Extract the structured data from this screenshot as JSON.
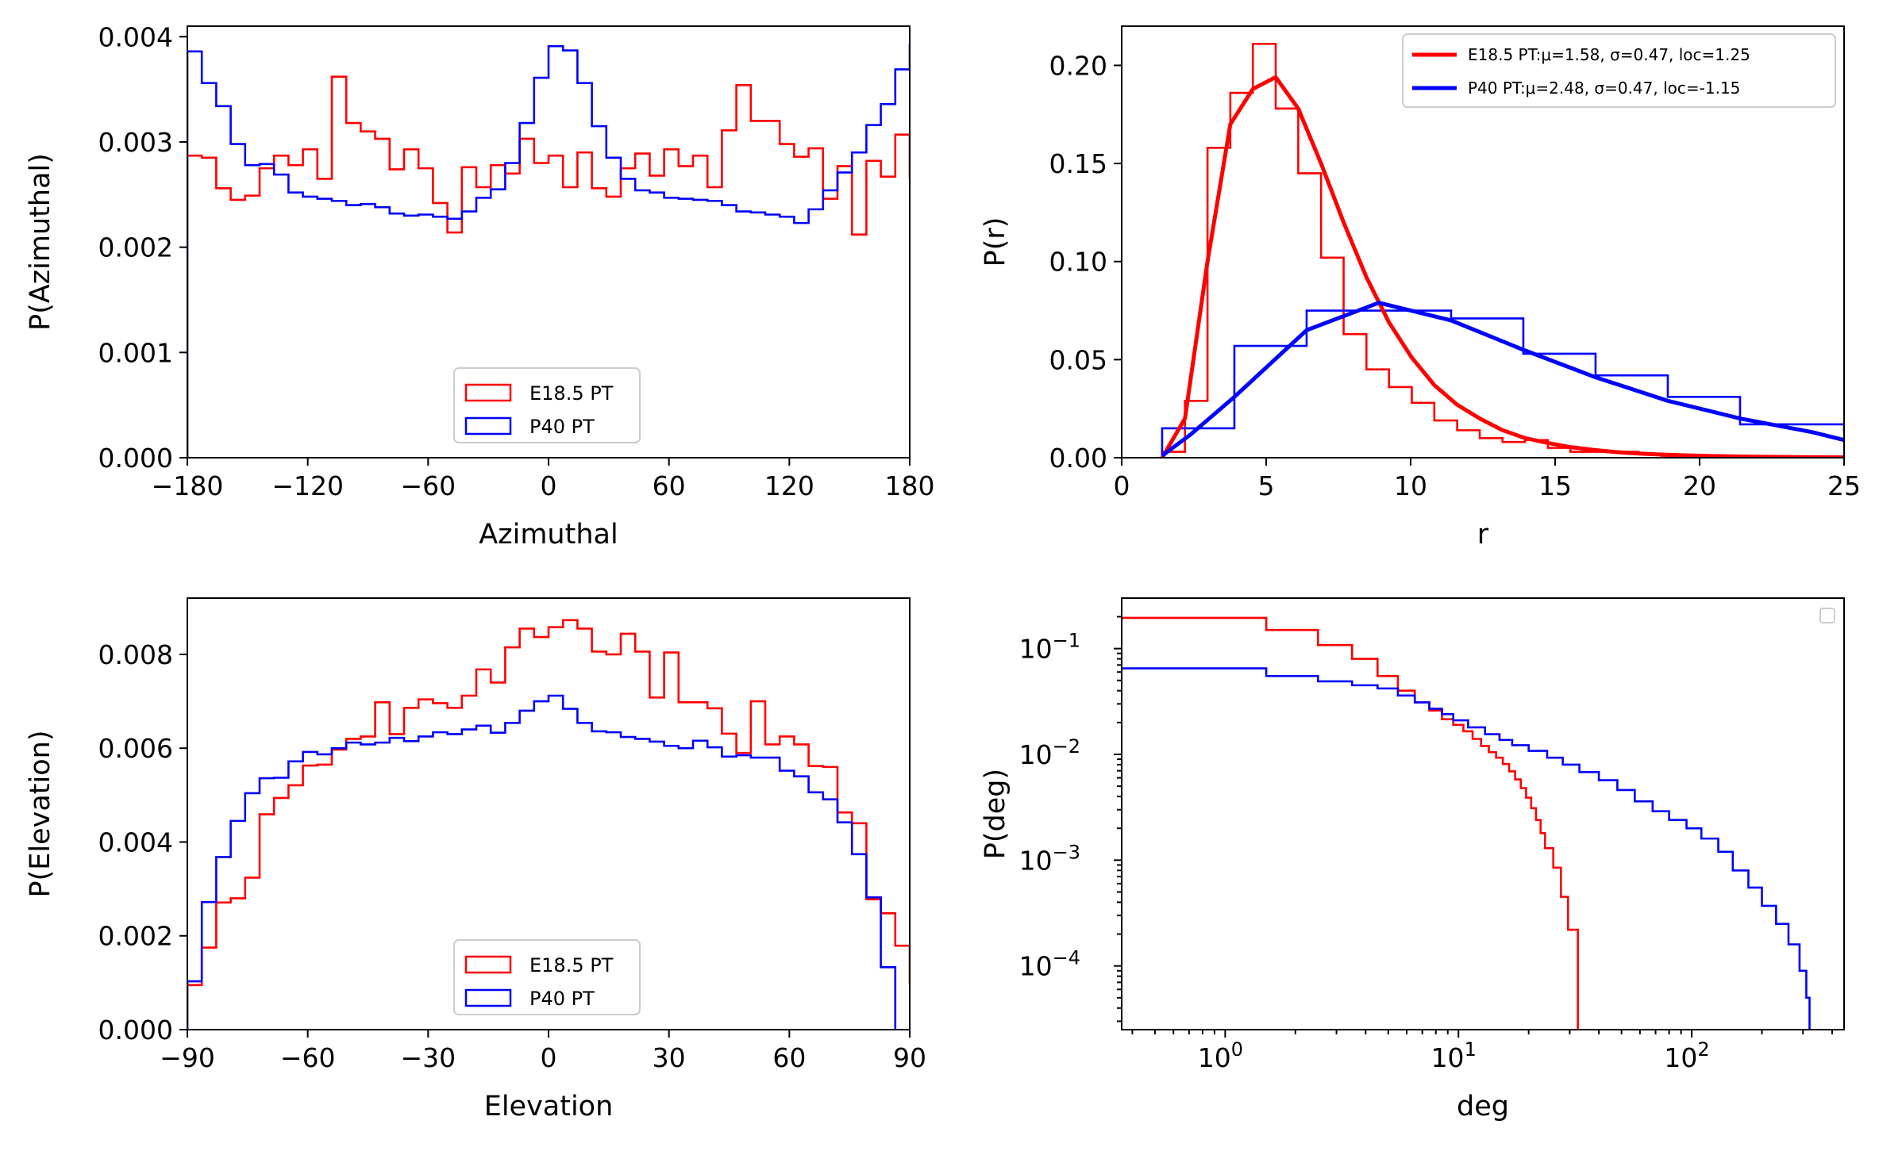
{
  "figure": {
    "colors": {
      "e185": "#ff0000",
      "p40": "#0000ff",
      "axis": "#000000"
    }
  },
  "chart_data": [
    {
      "id": "azimuthal",
      "type": "step",
      "xlabel": "Azimuthal",
      "ylabel": "P(Azimuthal)",
      "xlim": [
        -180,
        180
      ],
      "ylim": [
        0,
        0.0041
      ],
      "xticks": [
        -180,
        -120,
        -60,
        0,
        60,
        120,
        180
      ],
      "xtick_labels": [
        "−180",
        "−120",
        "−60",
        "0",
        "60",
        "120",
        "180"
      ],
      "yticks": [
        0,
        0.001,
        0.002,
        0.003,
        0.004
      ],
      "ytick_labels": [
        "0.000",
        "0.001",
        "0.002",
        "0.003",
        "0.004"
      ],
      "legend_position": "bottom-center",
      "legend": [
        "E18.5 PT",
        "P40 PT"
      ],
      "bin_edges_step": 7.2,
      "series": [
        {
          "name": "E18.5 PT",
          "color": "#ff0000",
          "values": [
            0.00287,
            0.00285,
            0.00256,
            0.00245,
            0.00249,
            0.00275,
            0.00287,
            0.00278,
            0.00293,
            0.00265,
            0.00362,
            0.00318,
            0.0031,
            0.00303,
            0.00274,
            0.00293,
            0.00275,
            0.00242,
            0.00214,
            0.00276,
            0.00257,
            0.00278,
            0.0027,
            0.00303,
            0.0028,
            0.00287,
            0.00257,
            0.0029,
            0.00256,
            0.00248,
            0.00275,
            0.00289,
            0.00268,
            0.00293,
            0.00277,
            0.00287,
            0.00257,
            0.00311,
            0.00354,
            0.0032,
            0.0032,
            0.00298,
            0.00286,
            0.00294,
            0.00246,
            0.00277,
            0.00212,
            0.00282,
            0.00267,
            0.00307,
            0.00267
          ]
        },
        {
          "name": "P40 PT",
          "color": "#0000ff",
          "values": [
            0.00386,
            0.00356,
            0.00334,
            0.00298,
            0.00278,
            0.00279,
            0.00269,
            0.00252,
            0.00248,
            0.00246,
            0.00244,
            0.0024,
            0.00241,
            0.00238,
            0.00232,
            0.0023,
            0.00231,
            0.00229,
            0.00227,
            0.00234,
            0.00247,
            0.00255,
            0.0028,
            0.00318,
            0.00361,
            0.00391,
            0.00387,
            0.00356,
            0.00315,
            0.00285,
            0.00265,
            0.00254,
            0.00252,
            0.00247,
            0.00246,
            0.00245,
            0.00244,
            0.0024,
            0.00234,
            0.00233,
            0.00231,
            0.00229,
            0.00223,
            0.00236,
            0.00254,
            0.00271,
            0.0029,
            0.00316,
            0.00336,
            0.00369,
            0.00392
          ]
        }
      ]
    },
    {
      "id": "radius",
      "type": "step+line",
      "xlabel": "r",
      "ylabel": "P(r)",
      "xlim": [
        0,
        25
      ],
      "ylim": [
        0,
        0.22
      ],
      "xticks": [
        0,
        5,
        10,
        15,
        20,
        25
      ],
      "xtick_labels": [
        "0",
        "5",
        "10",
        "15",
        "20",
        "25"
      ],
      "yticks": [
        0,
        0.05,
        0.1,
        0.15,
        0.2
      ],
      "ytick_labels": [
        "0.00",
        "0.05",
        "0.10",
        "0.15",
        "0.20"
      ],
      "legend_position": "top-right",
      "legend": [
        "E18.5 PT:μ=1.58, σ=0.47, loc=1.25",
        "P40 PT:μ=2.48, σ=0.47, loc=-1.15"
      ],
      "series": [
        {
          "name": "E18.5 PT",
          "color": "#ff0000",
          "kind": "histogram",
          "edges": [
            1.4,
            2.19,
            2.97,
            3.76,
            4.54,
            5.33,
            6.11,
            6.9,
            7.68,
            8.47,
            9.25,
            10.04,
            10.82,
            11.61,
            12.39,
            13.18,
            13.96,
            14.75,
            15.53,
            16.32,
            17.1,
            17.89,
            18.67,
            19.46,
            20.24,
            21.03,
            21.81,
            22.6,
            23.38,
            24.17,
            25.0
          ],
          "values": [
            0.003,
            0.029,
            0.158,
            0.186,
            0.211,
            0.178,
            0.145,
            0.102,
            0.063,
            0.045,
            0.036,
            0.028,
            0.019,
            0.014,
            0.01,
            0.008,
            0.009,
            0.005,
            0.003,
            0.003,
            0.003,
            0.002,
            0.001,
            0.001,
            0.001,
            0.0005,
            0.0003,
            0.0003,
            0.0002,
            0.0001
          ]
        },
        {
          "name": "P40 PT",
          "color": "#0000ff",
          "kind": "histogram",
          "edges": [
            1.4,
            3.9,
            6.4,
            8.9,
            11.4,
            13.9,
            16.4,
            18.9,
            21.4,
            25.0
          ],
          "values": [
            0.015,
            0.057,
            0.075,
            0.075,
            0.071,
            0.053,
            0.042,
            0.031,
            0.017,
            0.013
          ]
        },
        {
          "name": "E18.5 PT:μ=1.58, σ=0.47, loc=1.25",
          "color": "#ff0000",
          "kind": "fit",
          "x": [
            1.4,
            2.19,
            2.97,
            3.76,
            4.54,
            5.33,
            6.11,
            6.9,
            7.68,
            8.47,
            9.25,
            10.04,
            10.82,
            11.61,
            12.39,
            13.18,
            13.96,
            14.75,
            15.53,
            16.32,
            17.1,
            17.89,
            18.67,
            19.46,
            20.24,
            21.03,
            21.81,
            22.6,
            23.38,
            24.17,
            25.0
          ],
          "values": [
            0.0,
            0.02,
            0.1,
            0.17,
            0.188,
            0.194,
            0.178,
            0.15,
            0.12,
            0.092,
            0.069,
            0.051,
            0.037,
            0.027,
            0.02,
            0.014,
            0.01,
            0.0075,
            0.0054,
            0.004,
            0.0029,
            0.0021,
            0.0016,
            0.0012,
            0.0009,
            0.0007,
            0.0005,
            0.0004,
            0.0003,
            0.0002,
            0.00015
          ]
        },
        {
          "name": "P40 PT:μ=2.48, σ=0.47, loc=-1.15",
          "color": "#0000ff",
          "kind": "fit",
          "x": [
            1.4,
            2.4,
            3.9,
            6.4,
            8.9,
            11.4,
            13.9,
            16.4,
            18.9,
            21.4,
            23.9,
            25.0
          ],
          "values": [
            0.001,
            0.012,
            0.031,
            0.065,
            0.079,
            0.07,
            0.055,
            0.041,
            0.029,
            0.02,
            0.013,
            0.009
          ]
        }
      ]
    },
    {
      "id": "elevation",
      "type": "step",
      "xlabel": "Elevation",
      "ylabel": "P(Elevation)",
      "xlim": [
        -90,
        90
      ],
      "ylim": [
        0,
        0.0092
      ],
      "xticks": [
        -90,
        -60,
        -30,
        0,
        30,
        60,
        90
      ],
      "xtick_labels": [
        "−90",
        "−60",
        "−30",
        "0",
        "30",
        "60",
        "90"
      ],
      "yticks": [
        0,
        0.002,
        0.004,
        0.006,
        0.008
      ],
      "ytick_labels": [
        "0.000",
        "0.002",
        "0.004",
        "0.006",
        "0.008"
      ],
      "legend_position": "bottom-center",
      "legend": [
        "E18.5 PT",
        "P40 PT"
      ],
      "bin_edges_step": 3.6,
      "series": [
        {
          "name": "E18.5 PT",
          "color": "#ff0000",
          "values": [
            0.00095,
            0.00175,
            0.00271,
            0.0028,
            0.00324,
            0.00459,
            0.00494,
            0.00521,
            0.00563,
            0.00565,
            0.00597,
            0.0062,
            0.00625,
            0.00698,
            0.0063,
            0.00686,
            0.00704,
            0.00696,
            0.00686,
            0.00712,
            0.00768,
            0.0074,
            0.00815,
            0.00855,
            0.00837,
            0.00858,
            0.00873,
            0.00855,
            0.00806,
            0.008,
            0.00844,
            0.00806,
            0.00708,
            0.00804,
            0.00698,
            0.00698,
            0.00685,
            0.00631,
            0.0059,
            0.007,
            0.00608,
            0.00625,
            0.00608,
            0.00562,
            0.0056,
            0.00463,
            0.0044,
            0.00278,
            0.00248,
            0.00179,
            0.00099
          ]
        },
        {
          "name": "P40 PT",
          "color": "#0000ff",
          "values": [
            0.00103,
            0.00272,
            0.00368,
            0.00445,
            0.00504,
            0.00536,
            0.00537,
            0.00572,
            0.00592,
            0.00587,
            0.006,
            0.00612,
            0.00608,
            0.00612,
            0.00622,
            0.00615,
            0.00625,
            0.00634,
            0.0063,
            0.0064,
            0.00648,
            0.00633,
            0.00654,
            0.0068,
            0.007,
            0.00712,
            0.00684,
            0.00654,
            0.00636,
            0.00634,
            0.00624,
            0.0062,
            0.00614,
            0.00605,
            0.006,
            0.00616,
            0.00602,
            0.00582,
            0.00585,
            0.0058,
            0.0058,
            0.00552,
            0.0054,
            0.00506,
            0.00491,
            0.00442,
            0.00374,
            0.00282,
            0.00133
          ]
        }
      ]
    },
    {
      "id": "degree",
      "type": "step",
      "xlabel": "deg",
      "ylabel": "P(deg)",
      "xscale": "log",
      "yscale": "log",
      "xlim": [
        0.36,
        450
      ],
      "ylim": [
        2.5e-05,
        0.3
      ],
      "xticks": [
        1,
        10,
        100
      ],
      "xtick_labels": [
        {
          "base": "10",
          "exp": "0"
        },
        {
          "base": "10",
          "exp": "1"
        },
        {
          "base": "10",
          "exp": "2"
        }
      ],
      "yticks": [
        0.0001,
        0.001,
        0.01,
        0.1
      ],
      "ytick_labels": [
        {
          "base": "10",
          "exp": "−4"
        },
        {
          "base": "10",
          "exp": "−3"
        },
        {
          "base": "10",
          "exp": "−2"
        },
        {
          "base": "10",
          "exp": "−1"
        }
      ],
      "legend_position": "top-right",
      "legend": [],
      "series": [
        {
          "name": "",
          "color": "#ff0000",
          "x": [
            0.36,
            1.5,
            2.5,
            3.5,
            4.5,
            5.5,
            6.5,
            7.5,
            8.5,
            9.5,
            10.5,
            11.5,
            12.5,
            13.5,
            14.5,
            15.5,
            16.5,
            17.5,
            18.5,
            19.5,
            20.5,
            21.5,
            22.5,
            23.5,
            25.5,
            27.5,
            29.5,
            32.5
          ],
          "values": [
            0.195,
            0.15,
            0.108,
            0.08,
            0.055,
            0.04,
            0.031,
            0.026,
            0.0215,
            0.019,
            0.0165,
            0.014,
            0.012,
            0.0105,
            0.0093,
            0.0081,
            0.0069,
            0.0058,
            0.0048,
            0.0039,
            0.0031,
            0.0024,
            0.0018,
            0.0013,
            0.00085,
            0.00045,
            0.00022,
            2.5e-05
          ]
        },
        {
          "name": "",
          "color": "#0000ff",
          "x": [
            0.36,
            1.5,
            2.5,
            3.5,
            4.5,
            5.5,
            6.5,
            7.5,
            8.5,
            9.5,
            11,
            13,
            15,
            17,
            20,
            24,
            28,
            33,
            40,
            48,
            57,
            68,
            80,
            95,
            110,
            130,
            150,
            175,
            200,
            230,
            260,
            290,
            310,
            320
          ],
          "values": [
            0.065,
            0.055,
            0.049,
            0.045,
            0.042,
            0.036,
            0.031,
            0.027,
            0.024,
            0.021,
            0.018,
            0.0155,
            0.0137,
            0.0122,
            0.0108,
            0.0093,
            0.008,
            0.0068,
            0.0057,
            0.0046,
            0.0036,
            0.0029,
            0.0024,
            0.002,
            0.0016,
            0.0012,
            0.0008,
            0.00055,
            0.00037,
            0.00025,
            0.00016,
            9e-05,
            5e-05,
            2.5e-05
          ]
        }
      ]
    }
  ]
}
